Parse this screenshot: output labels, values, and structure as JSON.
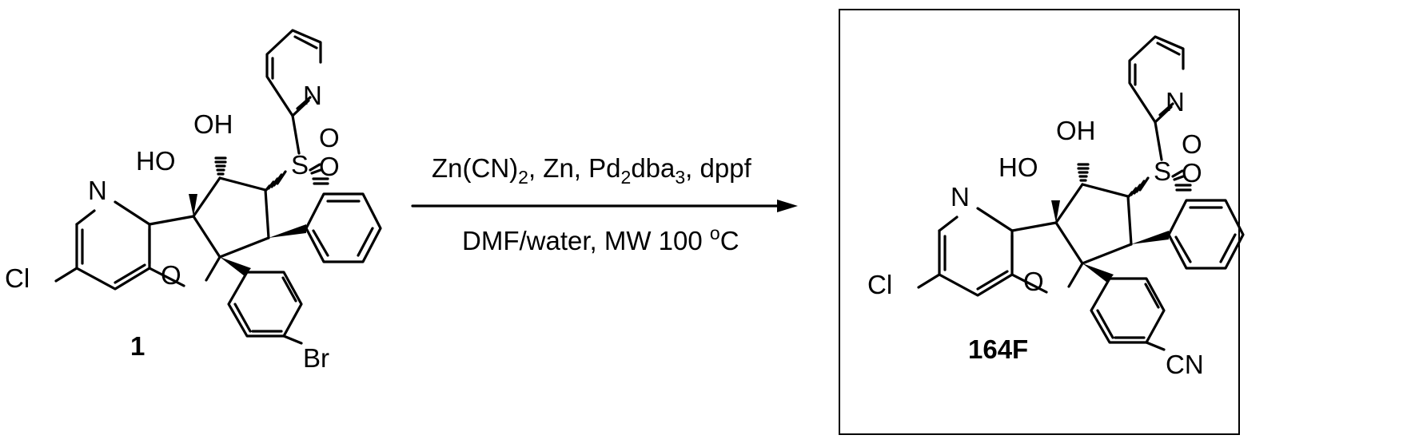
{
  "scheme": {
    "reactant": {
      "label": "1",
      "atoms": {
        "n_pyridine_fused": "N",
        "chlorine": "Cl",
        "oxygen_furan": "O",
        "hydroxyl_bridgehead": "HO",
        "hydroxyl_ring": "OH",
        "sulfur": "S",
        "sulfonyl_o_upper": "O",
        "sulfonyl_o_lower": "O",
        "n_pyridyl": "N",
        "bromine": "Br"
      }
    },
    "arrow": {
      "conditions_top": {
        "part1": "Zn(CN)",
        "sub1": "2",
        "part2": ", Zn, Pd",
        "sub2": "2",
        "part3": "dba",
        "sub3": "3",
        "part4": ", dppf"
      },
      "conditions_bottom": {
        "part1": "DMF/water, MW 100 ",
        "superscript": "o",
        "part2": "C"
      }
    },
    "product": {
      "label": "164F",
      "atoms": {
        "n_pyridine_fused": "N",
        "chlorine": "Cl",
        "oxygen_furan": "O",
        "hydroxyl_bridgehead": "HO",
        "hydroxyl_ring": "OH",
        "sulfur": "S",
        "sulfonyl_o_upper": "O",
        "sulfonyl_o_lower": "O",
        "n_pyridyl": "N",
        "nitrile": "CN"
      }
    }
  }
}
